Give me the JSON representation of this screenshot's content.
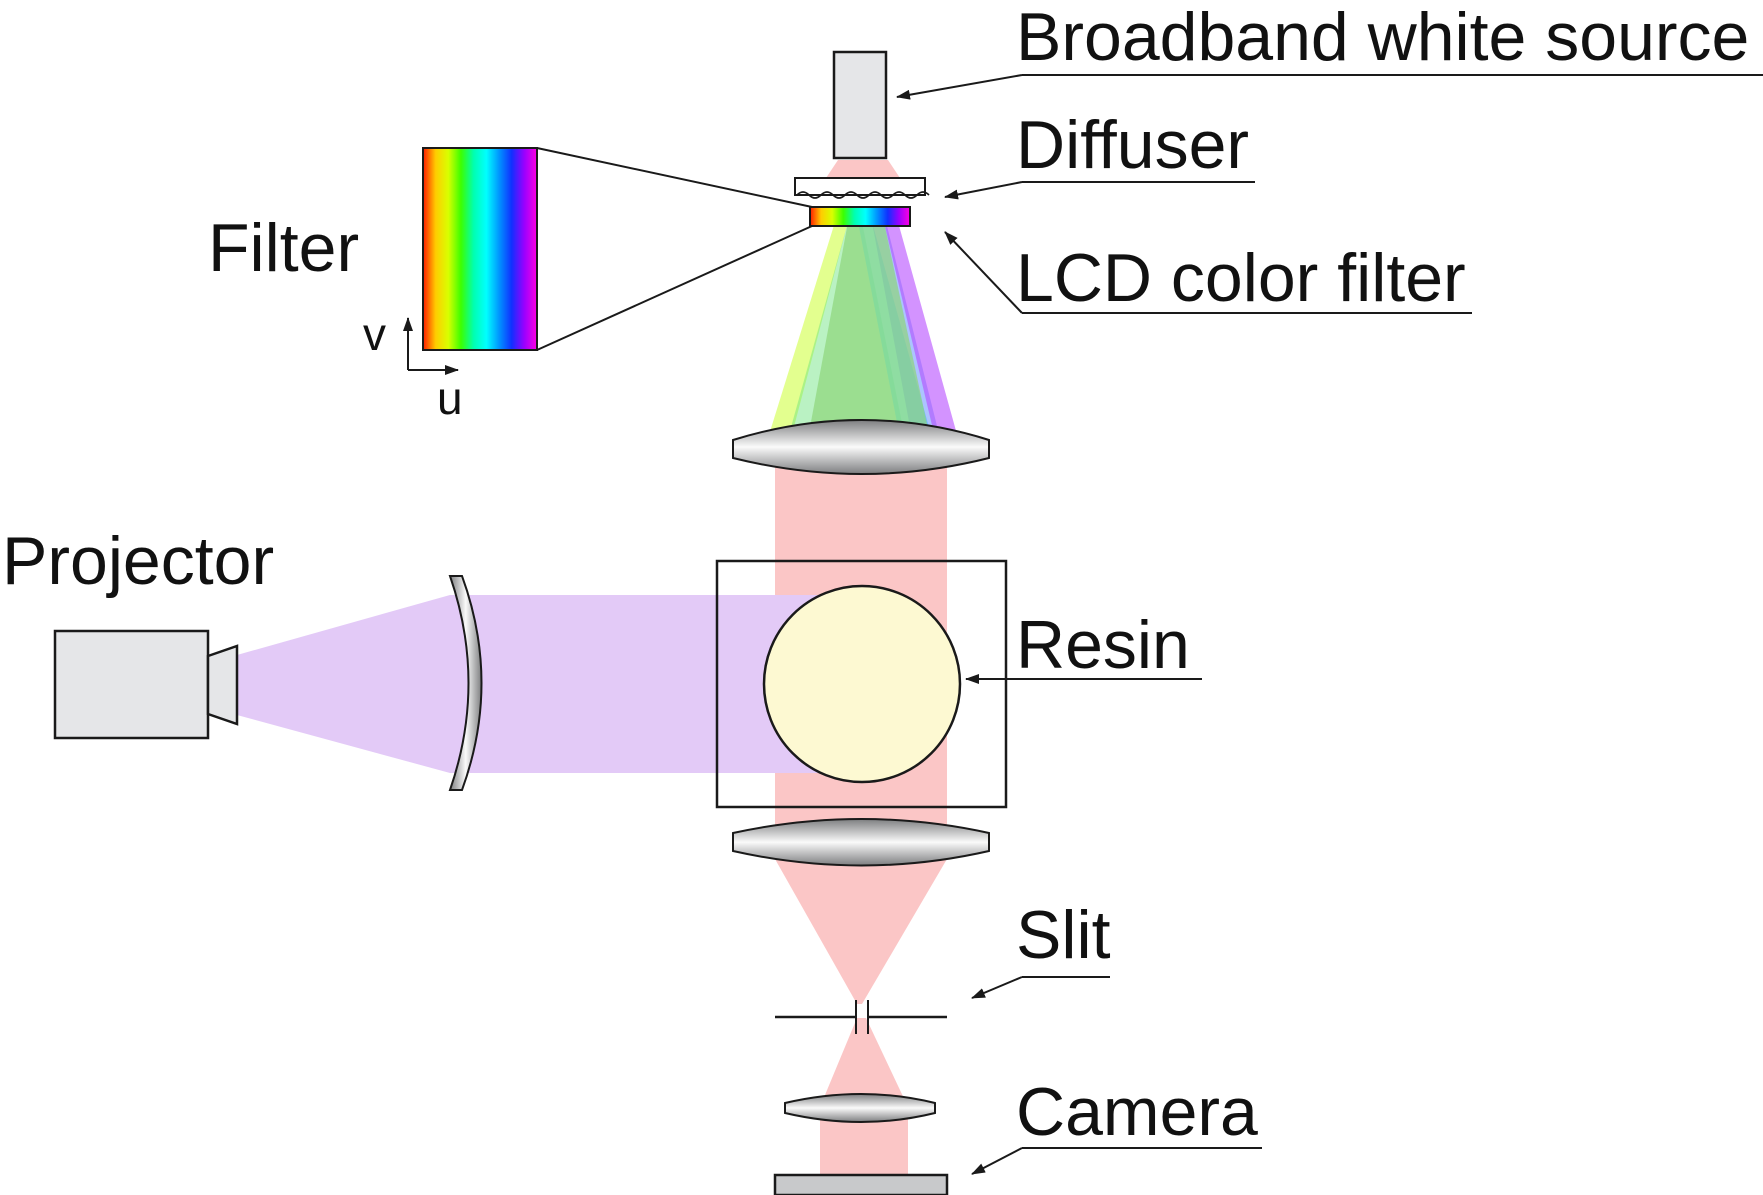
{
  "labels": {
    "source": "Broadband white source",
    "diffuser": "Diffuser",
    "lcd_filter": "LCD color filter",
    "filter": "Filter",
    "projector": "Projector",
    "resin": "Resin",
    "slit": "Slit",
    "camera": "Camera",
    "axis_v": "v",
    "axis_u": "u"
  },
  "colors": {
    "beam_red": "#fbc6c6",
    "beam_violet": "#e3caf7",
    "resin_fill": "#fdf9d2",
    "device_gray": "#e5e6e8",
    "plate_gray": "#c8c9cb",
    "stroke": "#1a1a1a"
  },
  "spectrum_stops": [
    "#ff1a00",
    "#ffcc00",
    "#d8ff00",
    "#3cff00",
    "#00ffb0",
    "#00ffff",
    "#0096ff",
    "#1030ff",
    "#9a00ff",
    "#ff00e0"
  ],
  "icons": [
    "light-source-block",
    "diffuser-plate",
    "lcd-filter-strip",
    "lens",
    "projector",
    "resin-vat",
    "slit",
    "camera-sensor"
  ]
}
